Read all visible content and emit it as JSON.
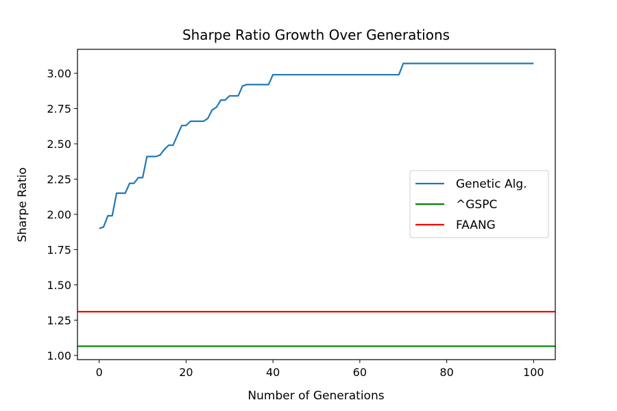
{
  "chart_data": {
    "type": "line",
    "title": "Sharpe Ratio Growth Over Generations",
    "xlabel": "Number of Generations",
    "ylabel": "Sharpe Ratio",
    "xlim": [
      -5,
      105
    ],
    "ylim": [
      0.97,
      3.17
    ],
    "xticks": [
      0,
      20,
      40,
      60,
      80,
      100
    ],
    "yticks": [
      1.0,
      1.25,
      1.5,
      1.75,
      2.0,
      2.25,
      2.5,
      2.75,
      3.0
    ],
    "ytick_labels": [
      "1.00",
      "1.25",
      "1.50",
      "1.75",
      "2.00",
      "2.25",
      "2.50",
      "2.75",
      "3.00"
    ],
    "grid": false,
    "legend_position": "center-right",
    "series": [
      {
        "name": "Genetic Alg.",
        "color": "#1f77b4",
        "kind": "line",
        "x": [
          0,
          1,
          2,
          3,
          4,
          5,
          6,
          7,
          8,
          9,
          10,
          11,
          12,
          13,
          14,
          15,
          16,
          17,
          18,
          19,
          20,
          21,
          22,
          23,
          24,
          25,
          26,
          27,
          28,
          29,
          30,
          31,
          32,
          33,
          34,
          35,
          36,
          37,
          38,
          39,
          40,
          45,
          50,
          55,
          60,
          65,
          69,
          70,
          75,
          80,
          85,
          90,
          95,
          100
        ],
        "y": [
          1.9,
          1.91,
          1.99,
          1.99,
          2.15,
          2.15,
          2.15,
          2.22,
          2.22,
          2.26,
          2.26,
          2.41,
          2.41,
          2.41,
          2.42,
          2.46,
          2.49,
          2.49,
          2.56,
          2.63,
          2.63,
          2.66,
          2.66,
          2.66,
          2.66,
          2.68,
          2.74,
          2.76,
          2.81,
          2.81,
          2.84,
          2.84,
          2.84,
          2.91,
          2.92,
          2.92,
          2.92,
          2.92,
          2.92,
          2.92,
          2.99,
          2.99,
          2.99,
          2.99,
          2.99,
          2.99,
          2.99,
          3.07,
          3.07,
          3.07,
          3.07,
          3.07,
          3.07,
          3.07
        ]
      },
      {
        "name": "^GSPC",
        "color": "#008000",
        "kind": "hline",
        "y": 1.065
      },
      {
        "name": "FAANG",
        "color": "#ff0000",
        "kind": "hline",
        "y": 1.31
      }
    ]
  }
}
